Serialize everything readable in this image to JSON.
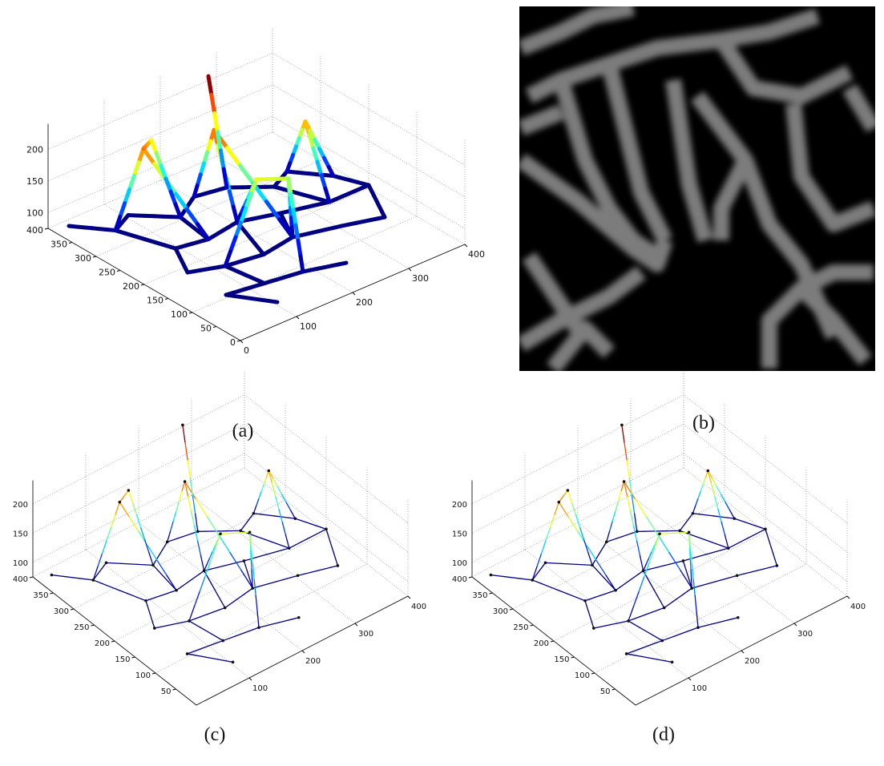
{
  "panels": [
    {
      "caption": "(a)",
      "z_ticks": [
        200,
        150,
        100
      ],
      "y_ticks": [
        400,
        350,
        300,
        250,
        200,
        150,
        100,
        50,
        0
      ],
      "x_ticks": [
        0,
        100,
        200,
        300,
        400
      ]
    },
    {
      "caption": "(b)"
    },
    {
      "caption": "(c)",
      "z_ticks": [
        200,
        150,
        100
      ],
      "y_ticks": [
        400,
        350,
        300,
        250,
        200,
        150,
        100,
        50
      ],
      "x_ticks": [
        100,
        200,
        300,
        400
      ]
    },
    {
      "caption": "(d)",
      "z_ticks": [
        200,
        150,
        100
      ],
      "y_ticks": [
        400,
        350,
        300,
        250,
        200,
        150,
        100,
        50
      ],
      "x_ticks": [
        100,
        200,
        300,
        400
      ]
    }
  ]
}
